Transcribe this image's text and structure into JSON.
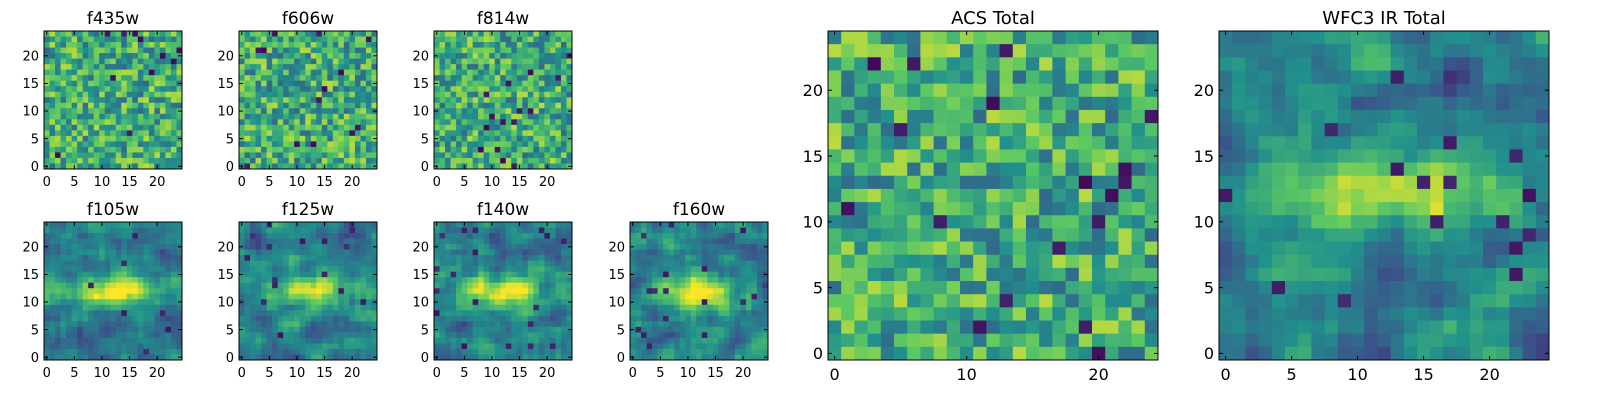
{
  "chart_data": [
    {
      "type": "heatmap",
      "title": "f435w",
      "xticks": [
        "0",
        "5",
        "10",
        "15",
        "20"
      ],
      "yticks": [
        "0",
        "5",
        "10",
        "15",
        "20"
      ],
      "xlim": [
        0,
        25
      ],
      "ylim": [
        0,
        25
      ],
      "grid": false,
      "colormap": "viridis",
      "texture": "noise"
    },
    {
      "type": "heatmap",
      "title": "f606w",
      "xticks": [
        "0",
        "5",
        "10",
        "15",
        "20"
      ],
      "yticks": [
        "0",
        "5",
        "10",
        "15",
        "20"
      ],
      "xlim": [
        0,
        25
      ],
      "ylim": [
        0,
        25
      ],
      "grid": false,
      "colormap": "viridis",
      "texture": "noise"
    },
    {
      "type": "heatmap",
      "title": "f814w",
      "xticks": [
        "0",
        "5",
        "10",
        "15",
        "20"
      ],
      "yticks": [
        "0",
        "5",
        "10",
        "15",
        "20"
      ],
      "xlim": [
        0,
        25
      ],
      "ylim": [
        0,
        25
      ],
      "grid": false,
      "colormap": "viridis",
      "texture": "noise"
    },
    {
      "type": "heatmap",
      "title": "f105w",
      "xticks": [
        "0",
        "5",
        "10",
        "15",
        "20"
      ],
      "yticks": [
        "0",
        "5",
        "10",
        "15",
        "20"
      ],
      "xlim": [
        0,
        25
      ],
      "ylim": [
        0,
        25
      ],
      "grid": false,
      "colormap": "viridis",
      "texture": "smooth-blob"
    },
    {
      "type": "heatmap",
      "title": "f125w",
      "xticks": [
        "0",
        "5",
        "10",
        "15",
        "20"
      ],
      "yticks": [
        "0",
        "5",
        "10",
        "15",
        "20"
      ],
      "xlim": [
        0,
        25
      ],
      "ylim": [
        0,
        25
      ],
      "grid": false,
      "colormap": "viridis",
      "texture": "smooth-blob"
    },
    {
      "type": "heatmap",
      "title": "f140w",
      "xticks": [
        "0",
        "5",
        "10",
        "15",
        "20"
      ],
      "yticks": [
        "0",
        "5",
        "10",
        "15",
        "20"
      ],
      "xlim": [
        0,
        25
      ],
      "ylim": [
        0,
        25
      ],
      "grid": false,
      "colormap": "viridis",
      "texture": "smooth-blob"
    },
    {
      "type": "heatmap",
      "title": "f160w",
      "xticks": [
        "0",
        "5",
        "10",
        "15",
        "20"
      ],
      "yticks": [
        "0",
        "5",
        "10",
        "15",
        "20"
      ],
      "xlim": [
        0,
        25
      ],
      "ylim": [
        0,
        25
      ],
      "grid": false,
      "colormap": "viridis",
      "texture": "smooth-blob"
    },
    {
      "type": "heatmap",
      "title": "ACS Total",
      "xticks": [
        "0",
        "10",
        "20"
      ],
      "yticks": [
        "0",
        "5",
        "10",
        "15",
        "20"
      ],
      "xlim": [
        0,
        25
      ],
      "ylim": [
        0,
        25
      ],
      "grid": false,
      "colormap": "viridis",
      "texture": "noise"
    },
    {
      "type": "heatmap",
      "title": "WFC3 IR Total",
      "xticks": [
        "0",
        "5",
        "10",
        "15",
        "20"
      ],
      "yticks": [
        "0",
        "5",
        "10",
        "15",
        "20"
      ],
      "xlim": [
        0,
        25
      ],
      "ylim": [
        0,
        25
      ],
      "grid": false,
      "colormap": "viridis",
      "texture": "smooth-blob"
    }
  ],
  "colors": {
    "viridis": [
      "#440154",
      "#3b528b",
      "#21918c",
      "#5ec962",
      "#fde725"
    ],
    "axis": "#000000",
    "background": "#ffffff"
  }
}
